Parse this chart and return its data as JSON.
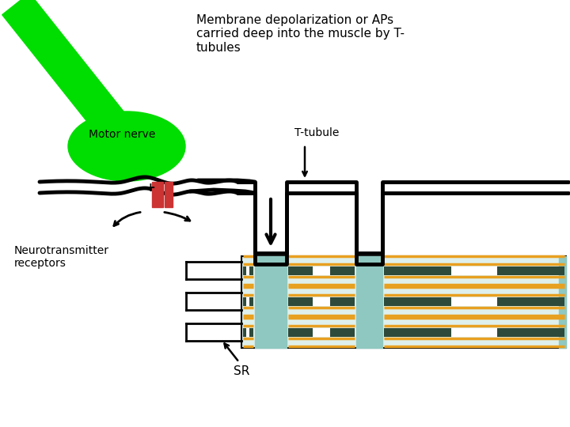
{
  "bg_color": "#ffffff",
  "title_text": "Membrane depolarization or APs\ncarried deep into the muscle by T-\ntubules",
  "motor_nerve_label": "Motor nerve",
  "neurotrans_label": "Neurotransmitter\nreceptors",
  "t_tubule_label": "T-tubule",
  "sr_label": "SR",
  "green_color": "#00dd00",
  "teal_color": "#8fc8c0",
  "orange_color": "#e8a020",
  "dark_gray": "#2d4a3a",
  "black": "#000000",
  "sr_fill": "#dff0ec",
  "red_color": "#cc3333",
  "lw_membrane": 3.5,
  "lw_bracket": 2.0
}
